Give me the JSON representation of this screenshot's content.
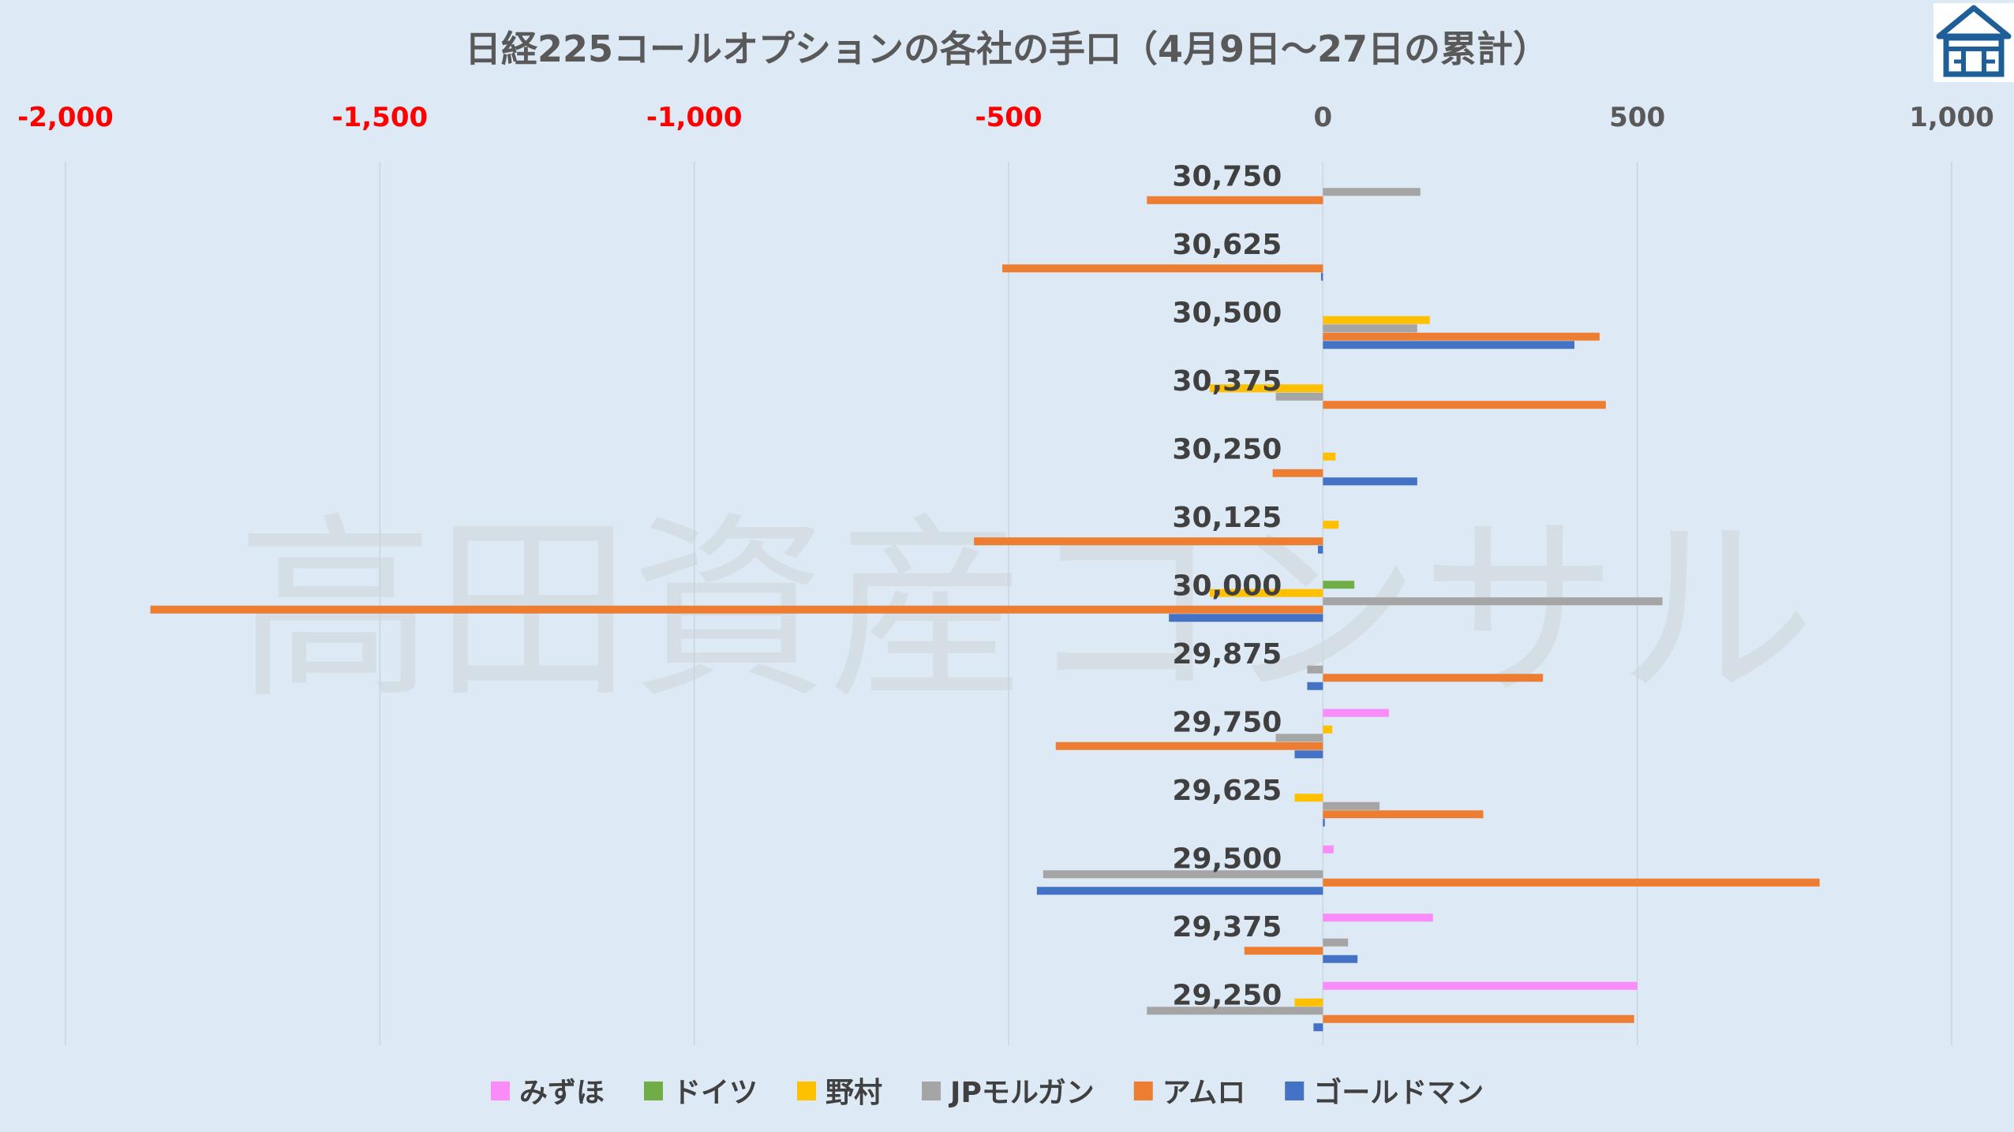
{
  "watermark_text": "高田資産コンサル",
  "colors": {
    "background": "#dde9f5",
    "grid": "#c8d4e0",
    "negative_tick": "#ff0000",
    "logo": "#1e5f99"
  },
  "chart_data": {
    "type": "bar",
    "orientation": "horizontal",
    "title": "日経225コールオプションの各社の手口（4月9日～27日の累計）",
    "xlim": [
      -2000,
      1000
    ],
    "x_ticks": [
      -2000,
      -1500,
      -1000,
      -500,
      0,
      500,
      1000
    ],
    "x_tick_labels": [
      "-2,000",
      "-1,500",
      "-1,000",
      "-500",
      "0",
      "500",
      "1,000"
    ],
    "negative_ticks_red": true,
    "grid": true,
    "legend_position": "bottom",
    "categories": [
      "30,750",
      "30,625",
      "30,500",
      "30,375",
      "30,250",
      "30,125",
      "30,000",
      "29,875",
      "29,750",
      "29,625",
      "29,500",
      "29,375",
      "29,250"
    ],
    "series": [
      {
        "name": "みずほ",
        "color": "#f98cf8",
        "values": [
          0,
          0,
          0,
          0,
          0,
          0,
          0,
          0,
          105,
          0,
          17,
          175,
          500
        ]
      },
      {
        "name": "ドイツ",
        "color": "#70ad47",
        "values": [
          0,
          0,
          0,
          0,
          0,
          0,
          50,
          0,
          0,
          0,
          0,
          0,
          0
        ]
      },
      {
        "name": "野村",
        "color": "#ffc000",
        "values": [
          0,
          0,
          170,
          -180,
          20,
          25,
          -180,
          0,
          15,
          -45,
          0,
          0,
          -45
        ]
      },
      {
        "name": "JPモルガン",
        "color": "#a5a5a5",
        "values": [
          155,
          0,
          150,
          -75,
          0,
          0,
          540,
          -25,
          -75,
          90,
          -445,
          40,
          -280
        ]
      },
      {
        "name": "アムロ",
        "color": "#ed7d31",
        "values": [
          -280,
          -510,
          440,
          450,
          -80,
          -555,
          -1865,
          350,
          -425,
          255,
          790,
          -125,
          495
        ]
      },
      {
        "name": "ゴールドマン",
        "color": "#4472c4",
        "values": [
          0,
          -3,
          400,
          0,
          150,
          -8,
          -245,
          -25,
          -45,
          3,
          -455,
          55,
          -15
        ]
      }
    ]
  }
}
